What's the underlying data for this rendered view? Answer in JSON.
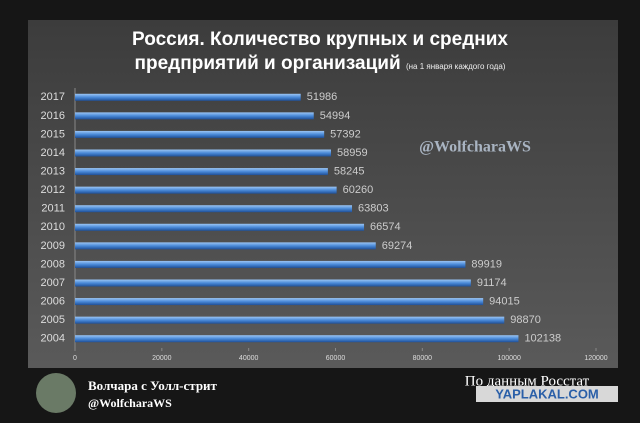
{
  "chart_data": {
    "type": "hbar",
    "title": "Россия. Количество крупных и средних предприятий и организаций",
    "subtitle": "(на 1 января каждого года)",
    "categories": [
      "2017",
      "2016",
      "2015",
      "2014",
      "2013",
      "2012",
      "2011",
      "2010",
      "2009",
      "2008",
      "2007",
      "2006",
      "2005",
      "2004"
    ],
    "values": [
      51986,
      54994,
      57392,
      58959,
      58245,
      60260,
      63803,
      66574,
      69274,
      89919,
      91174,
      94015,
      98870,
      102138
    ],
    "color": "#4a8ad8",
    "xlim": [
      0,
      120000
    ],
    "xticks": [
      0,
      20000,
      40000,
      60000,
      80000,
      100000,
      120000
    ]
  },
  "watermark": "@WolfcharaWS",
  "footer": {
    "author": "Волчара с Уолл-стрит",
    "handle": "@WolfcharaWS",
    "source": "По данным Росстат",
    "site": "YAPLAKAL.COM"
  }
}
